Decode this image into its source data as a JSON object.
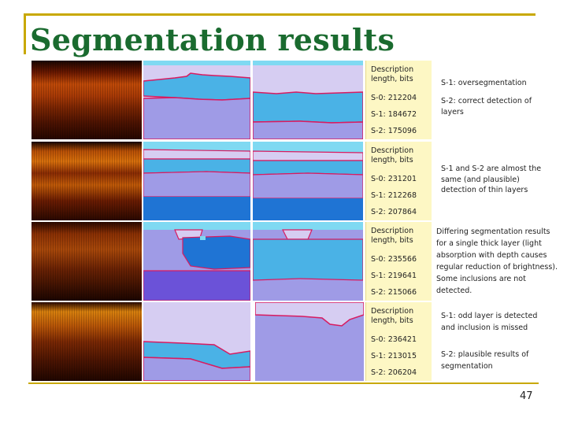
{
  "slide": {
    "title": "Segmentation results",
    "page_number": "47"
  },
  "rows": [
    {
      "description_label": "Description length, bits",
      "values": [
        "S-0: 212204",
        "S-1: 184672",
        "S-2: 175096"
      ],
      "notes": [
        "S-1: oversegmentation",
        "S-2: correct detection of layers"
      ]
    },
    {
      "description_label": "Description length, bits",
      "values": [
        "S-0: 231201",
        "S-1: 212268",
        "S-2: 207864"
      ],
      "notes": [
        "S-1 and S-2 are almost the same (and plausible) detection of thin layers"
      ]
    },
    {
      "description_label": "Description length, bits",
      "values": [
        "S-0: 235566",
        "S-1: 219641",
        "S-2: 215066"
      ],
      "notes": [
        "Differing segmentation results for a single thick layer (light absorption with depth causes regular reduction of brightness). Some inclusions are not detected."
      ]
    },
    {
      "description_label": "Description length, bits",
      "values": [
        "S-0: 236421",
        "S-1: 213015",
        "S-2: 206204"
      ],
      "notes": [
        "S-1: odd layer is detected and inclusion is missed",
        "S-2: plausible results of segmentation"
      ]
    }
  ],
  "colors": {
    "title": "#1a6b2f",
    "rule": "#c8a800",
    "desc_bg": "#fdf7c4",
    "lavender": "#d6cdf2",
    "sky": "#4ab2e6",
    "medium": "#9f9be6",
    "deep": "#1f74d4",
    "cyan": "#7fd9f2",
    "border": "#d81b60"
  }
}
